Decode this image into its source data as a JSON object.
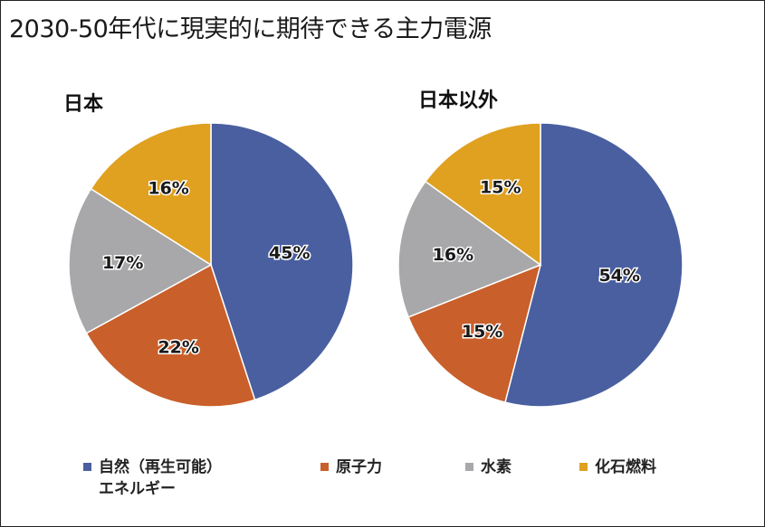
{
  "title": "2030-50年代に現実的に期待できる主力電源",
  "legend": [
    {
      "line1": "自然（再生可能）",
      "line2": "エネルギー",
      "color": "#4a5fa0"
    },
    {
      "line1": "原子力",
      "line2": "",
      "color": "#c95f2a"
    },
    {
      "line1": "水素",
      "line2": "",
      "color": "#a8a8ab"
    },
    {
      "line1": "化石燃料",
      "line2": "",
      "color": "#e0a020"
    }
  ],
  "chart_data": [
    {
      "type": "pie",
      "title": "日本",
      "categories": [
        "自然（再生可能）エネルギー",
        "原子力",
        "水素",
        "化石燃料"
      ],
      "values": [
        45,
        22,
        17,
        16
      ],
      "labels": [
        "45%",
        "22%",
        "17%",
        "16%"
      ],
      "colors": [
        "#4a5fa0",
        "#c95f2a",
        "#a8a8ab",
        "#e0a020"
      ]
    },
    {
      "type": "pie",
      "title": "日本以外",
      "categories": [
        "自然（再生可能）エネルギー",
        "原子力",
        "水素",
        "化石燃料"
      ],
      "values": [
        54,
        15,
        16,
        15
      ],
      "labels": [
        "54%",
        "15%",
        "16%",
        "15%"
      ],
      "colors": [
        "#4a5fa0",
        "#c95f2a",
        "#a8a8ab",
        "#e0a020"
      ]
    }
  ]
}
